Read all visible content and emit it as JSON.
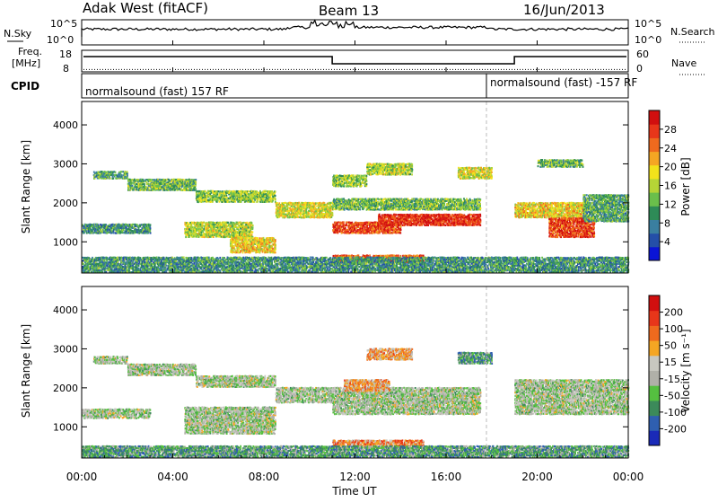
{
  "header": {
    "left_title": "Adak West (fitACF)",
    "center_title": "Beam 13",
    "right_title": "16/Jun/2013"
  },
  "nsky_panel": {
    "left_label": "N.Sky",
    "right_label": "N.Search",
    "left_ticks": [
      "10^5",
      "10^0"
    ],
    "right_ticks": [
      "10^5",
      "10^0"
    ]
  },
  "freq_panel": {
    "left_label_1": "Freq.",
    "left_label_2": "[MHz]",
    "right_label": "Nave",
    "left_ticks": [
      "18",
      "8"
    ],
    "right_ticks": [
      "60",
      "0"
    ],
    "freq_level_1": 15.5,
    "freq_level_2": 11.5,
    "nave_level": 2
  },
  "cpid_panel": {
    "label": "CPID",
    "segment_1": "normalsound (fast) 157 RF",
    "segment_2": "normalsound (fast) -157 RF"
  },
  "chart_data": [
    {
      "type": "heatmap",
      "name": "power",
      "ylabel": "Slant Range [km]",
      "yticks": [
        1000,
        2000,
        3000,
        4000
      ],
      "ylim": [
        200,
        4600
      ],
      "colorbar": {
        "label": "Power [dB]",
        "ticks": [
          "4",
          "8",
          "12",
          "16",
          "20",
          "24",
          "28"
        ],
        "colors": [
          "#0a14d6",
          "#244fa8",
          "#3a7fa0",
          "#2e8b57",
          "#6abf4b",
          "#b6d436",
          "#f2e21b",
          "#f5a623",
          "#ef6a1e",
          "#e8361a",
          "#d10f0f"
        ]
      },
      "echo_bands": [
        {
          "t0": 0.5,
          "t1": 2.0,
          "r0": 2600,
          "r1": 2800,
          "level": 0.35
        },
        {
          "t0": 2.0,
          "t1": 5.0,
          "r0": 2300,
          "r1": 2600,
          "level": 0.4
        },
        {
          "t0": 5.0,
          "t1": 8.5,
          "r0": 2000,
          "r1": 2300,
          "level": 0.45
        },
        {
          "t0": 8.5,
          "t1": 11.0,
          "r0": 1600,
          "r1": 2000,
          "level": 0.55
        },
        {
          "t0": 0.0,
          "t1": 3.0,
          "r0": 1200,
          "r1": 1450,
          "level": 0.3
        },
        {
          "t0": 4.5,
          "t1": 7.5,
          "r0": 1100,
          "r1": 1500,
          "level": 0.5
        },
        {
          "t0": 6.5,
          "t1": 8.5,
          "r0": 700,
          "r1": 1100,
          "level": 0.6
        },
        {
          "t0": 11.0,
          "t1": 14.0,
          "r0": 1200,
          "r1": 1500,
          "level": 0.85
        },
        {
          "t0": 13.0,
          "t1": 17.5,
          "r0": 1400,
          "r1": 1700,
          "level": 0.9
        },
        {
          "t0": 11.0,
          "t1": 17.5,
          "r0": 1800,
          "r1": 2100,
          "level": 0.4
        },
        {
          "t0": 11.0,
          "t1": 12.5,
          "r0": 2400,
          "r1": 2700,
          "level": 0.45
        },
        {
          "t0": 12.5,
          "t1": 14.5,
          "r0": 2700,
          "r1": 3000,
          "level": 0.5
        },
        {
          "t0": 16.5,
          "t1": 18.0,
          "r0": 2600,
          "r1": 2900,
          "level": 0.55
        },
        {
          "t0": 11.0,
          "t1": 15.0,
          "r0": 450,
          "r1": 650,
          "level": 0.8
        },
        {
          "t0": 19.0,
          "t1": 22.0,
          "r0": 1600,
          "r1": 2000,
          "level": 0.6
        },
        {
          "t0": 20.5,
          "t1": 22.5,
          "r0": 1100,
          "r1": 1600,
          "level": 0.85
        },
        {
          "t0": 22.0,
          "t1": 24.0,
          "r0": 1500,
          "r1": 2200,
          "level": 0.35
        },
        {
          "t0": 20.0,
          "t1": 22.0,
          "r0": 2900,
          "r1": 3100,
          "level": 0.4
        },
        {
          "t0": 0.0,
          "t1": 24.0,
          "r0": 200,
          "r1": 600,
          "level": 0.3
        }
      ]
    },
    {
      "type": "heatmap",
      "name": "velocity",
      "ylabel": "Slant Range [km]",
      "yticks": [
        1000,
        2000,
        3000,
        4000
      ],
      "ylim": [
        200,
        4600
      ],
      "colorbar": {
        "label": "Velocity [m s⁻¹]",
        "ticks": [
          "200",
          "100",
          "50",
          "15",
          "-15",
          "-50",
          "-100",
          "-200"
        ],
        "colors": [
          "#1a2ab8",
          "#2f5fb0",
          "#3c8a5a",
          "#55c040",
          "#b0b0a8",
          "#c8c8c0",
          "#f5a623",
          "#ef6a1e",
          "#e8361a",
          "#d10f0f"
        ]
      },
      "echo_bands": [
        {
          "t0": 0.5,
          "t1": 2.0,
          "r0": 2600,
          "r1": 2800,
          "level": 0.45
        },
        {
          "t0": 2.0,
          "t1": 5.0,
          "r0": 2300,
          "r1": 2600,
          "level": 0.45
        },
        {
          "t0": 5.0,
          "t1": 8.5,
          "r0": 2000,
          "r1": 2300,
          "level": 0.45
        },
        {
          "t0": 8.5,
          "t1": 11.0,
          "r0": 1600,
          "r1": 2000,
          "level": 0.45
        },
        {
          "t0": 0.0,
          "t1": 3.0,
          "r0": 1200,
          "r1": 1450,
          "level": 0.45
        },
        {
          "t0": 4.5,
          "t1": 8.5,
          "r0": 800,
          "r1": 1500,
          "level": 0.45
        },
        {
          "t0": 11.0,
          "t1": 17.5,
          "r0": 1300,
          "r1": 2000,
          "level": 0.45
        },
        {
          "t0": 11.5,
          "t1": 13.5,
          "r0": 1900,
          "r1": 2200,
          "level": 0.65
        },
        {
          "t0": 12.5,
          "t1": 14.5,
          "r0": 2700,
          "r1": 3000,
          "level": 0.65
        },
        {
          "t0": 16.5,
          "t1": 18.0,
          "r0": 2600,
          "r1": 2900,
          "level": 0.3
        },
        {
          "t0": 11.0,
          "t1": 15.0,
          "r0": 450,
          "r1": 650,
          "level": 0.7
        },
        {
          "t0": 19.0,
          "t1": 24.0,
          "r0": 1300,
          "r1": 2200,
          "level": 0.45
        },
        {
          "t0": 0.0,
          "t1": 24.0,
          "r0": 200,
          "r1": 500,
          "level": 0.3
        }
      ]
    }
  ],
  "time_axis": {
    "label": "Time UT",
    "ticks": [
      "00:00",
      "04:00",
      "08:00",
      "12:00",
      "16:00",
      "20:00",
      "00:00"
    ]
  }
}
